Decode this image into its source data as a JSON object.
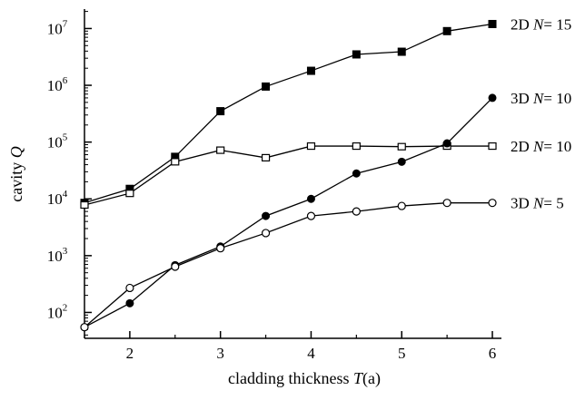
{
  "chart_data": {
    "type": "line",
    "xlabel": {
      "text": "cladding thickness ",
      "var": "T",
      "unit": "(a)"
    },
    "ylabel": {
      "text": "cavity ",
      "var": "Q"
    },
    "xlim": [
      1.5,
      6.1
    ],
    "ylim": [
      35,
      22000000
    ],
    "yscale": "log",
    "grid": false,
    "x_ticks": [
      2,
      3,
      4,
      5,
      6
    ],
    "y_ticks": [
      {
        "value": 100,
        "base": "10",
        "exp": "2"
      },
      {
        "value": 1000,
        "base": "10",
        "exp": "3"
      },
      {
        "value": 10000,
        "base": "10",
        "exp": "4"
      },
      {
        "value": 100000,
        "base": "10",
        "exp": "5"
      },
      {
        "value": 1000000,
        "base": "10",
        "exp": "6"
      },
      {
        "value": 10000000,
        "base": "10",
        "exp": "7"
      }
    ],
    "series": [
      {
        "name": "2D N=15",
        "label_dim": "2D",
        "label_var": "N",
        "label_val": "= 15",
        "marker": "filled-square",
        "x": [
          1.5,
          2.0,
          2.5,
          3.0,
          3.5,
          4.0,
          4.5,
          5.0,
          5.5,
          6.0
        ],
        "y": [
          8500,
          15000,
          55000,
          350000,
          950000,
          1800000,
          3500000,
          3900000,
          9000000,
          12000000
        ]
      },
      {
        "name": "2D N=10",
        "label_dim": "2D",
        "label_var": "N",
        "label_val": "= 10",
        "marker": "open-square",
        "x": [
          1.5,
          2.0,
          2.5,
          3.0,
          3.5,
          4.0,
          4.5,
          5.0,
          5.5,
          6.0
        ],
        "y": [
          7800,
          12500,
          45000,
          72000,
          53000,
          85000,
          85000,
          83000,
          85000,
          85000
        ]
      },
      {
        "name": "3D N=10",
        "label_dim": "3D",
        "label_var": "N",
        "label_val": "= 10",
        "marker": "filled-circle",
        "x": [
          1.5,
          2.0,
          2.5,
          3.0,
          3.5,
          4.0,
          4.5,
          5.0,
          5.5,
          6.0
        ],
        "y": [
          55,
          145,
          680,
          1450,
          5000,
          10000,
          28000,
          45000,
          95000,
          600000
        ]
      },
      {
        "name": "3D N=5",
        "label_dim": "3D",
        "label_var": "N",
        "label_val": "= 5",
        "marker": "open-circle",
        "x": [
          1.5,
          2.0,
          2.5,
          3.0,
          3.5,
          4.0,
          4.5,
          5.0,
          5.5,
          6.0
        ],
        "y": [
          55,
          270,
          640,
          1350,
          2500,
          5000,
          6000,
          7500,
          8500,
          8500
        ]
      }
    ]
  }
}
